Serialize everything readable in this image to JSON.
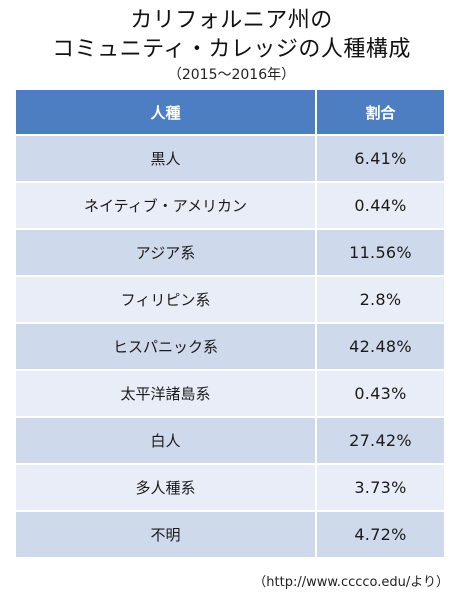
{
  "title": {
    "line1": "カリフォルニア州の",
    "line2": "コミュニティ・カレッジの人種構成",
    "period": "（2015～2016年）"
  },
  "table": {
    "headers": [
      "人種",
      "割合"
    ],
    "rows": [
      {
        "race": "黒人",
        "share": "6.41%"
      },
      {
        "race": "ネイティブ・アメリカン",
        "share": "0.44%"
      },
      {
        "race": "アジア系",
        "share": "11.56%"
      },
      {
        "race": "フィリピン系",
        "share": "2.8%"
      },
      {
        "race": "ヒスパニック系",
        "share": "42.48%"
      },
      {
        "race": "太平洋諸島系",
        "share": "0.43%"
      },
      {
        "race": "白人",
        "share": "27.42%"
      },
      {
        "race": "多人種系",
        "share": "3.73%"
      },
      {
        "race": "不明",
        "share": "4.72%"
      }
    ]
  },
  "source": "（http://www.cccco.edu/より）",
  "colors": {
    "header_bg": "#4e7ec2",
    "row_dark": "#cfd9ec",
    "row_light": "#e8edf7"
  }
}
